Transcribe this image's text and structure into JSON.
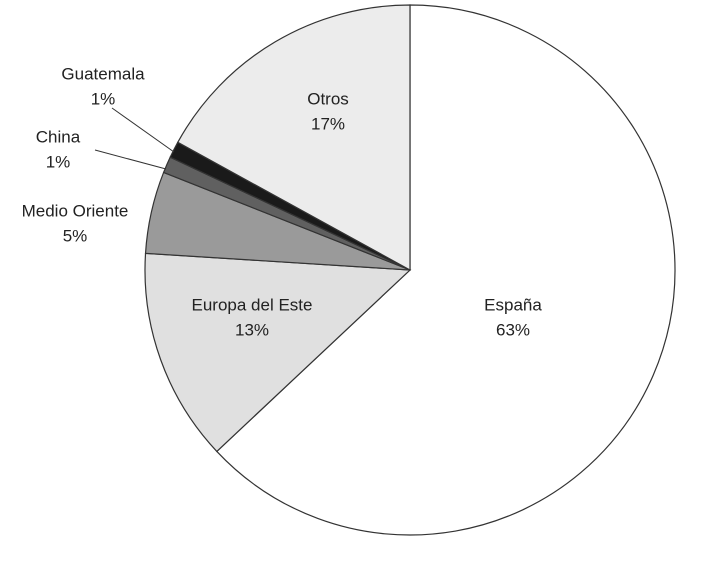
{
  "chart_data": {
    "type": "pie",
    "categories": [
      "España",
      "Europa del Este",
      "Medio Oriente",
      "China",
      "Guatemala",
      "Otros"
    ],
    "values": [
      63,
      13,
      5,
      1,
      1,
      17
    ],
    "value_labels": [
      "63%",
      "13%",
      "5%",
      "1%",
      "1%",
      "17%"
    ],
    "colors": [
      "#ffffff",
      "#e0e0e0",
      "#9a9a9a",
      "#606060",
      "#1a1a1a",
      "#ececec"
    ]
  }
}
